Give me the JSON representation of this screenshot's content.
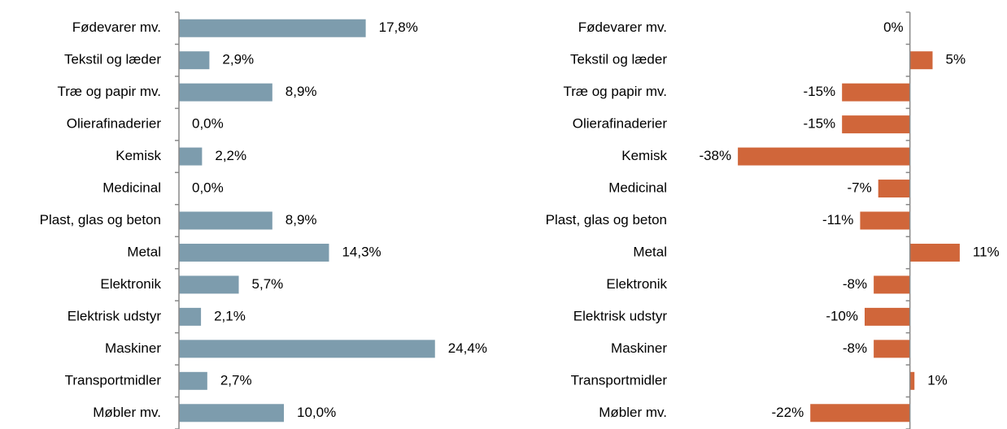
{
  "chart_data": [
    {
      "type": "hbar",
      "categories": [
        "Fødevarer mv.",
        "Tekstil og læder",
        "Træ og papir mv.",
        "Olierafinaderier",
        "Kemisk",
        "Medicinal",
        "Plast, glas og beton",
        "Metal",
        "Elektronik",
        "Elektrisk udstyr",
        "Maskiner",
        "Transportmidler",
        "Møbler mv."
      ],
      "values": [
        17.8,
        2.9,
        8.9,
        0.0,
        2.2,
        0.0,
        8.9,
        14.3,
        5.7,
        2.1,
        24.4,
        2.7,
        10.0
      ],
      "value_labels": [
        "17,8%",
        "2,9%",
        "8,9%",
        "0,0%",
        "2,2%",
        "0,0%",
        "8,9%",
        "14,3%",
        "5,7%",
        "2,1%",
        "24,4%",
        "2,7%",
        "10,0%"
      ],
      "color": "#7d9cad",
      "xlim": [
        0,
        30
      ]
    },
    {
      "type": "hbar",
      "categories": [
        "Fødevarer mv.",
        "Tekstil og læder",
        "Træ og papir mv.",
        "Olierafinaderier",
        "Kemisk",
        "Medicinal",
        "Plast, glas og beton",
        "Metal",
        "Elektronik",
        "Elektrisk udstyr",
        "Maskiner",
        "Transportmidler",
        "Møbler mv."
      ],
      "values": [
        0,
        5,
        -15,
        -15,
        -38,
        -7,
        -11,
        11,
        -8,
        -10,
        -8,
        1,
        -22
      ],
      "value_labels": [
        "0%",
        "5%",
        "-15%",
        "-15%",
        "-38%",
        "-7%",
        "-11%",
        "11%",
        "-8%",
        "-10%",
        "-8%",
        "1%",
        "-22%"
      ],
      "color": "#d0663a",
      "xlim": [
        -40,
        20
      ]
    }
  ]
}
